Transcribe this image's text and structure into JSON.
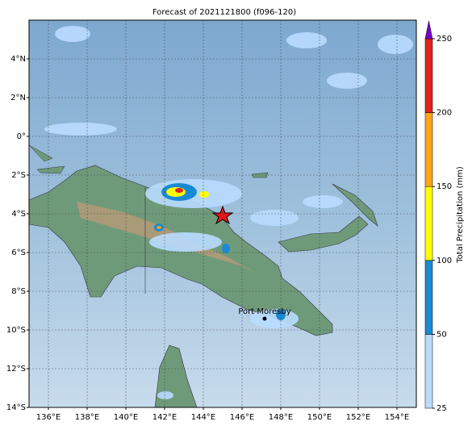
{
  "title": "Forecast of 2021121800 (f096-120)",
  "map": {
    "xlim": [
      135,
      155
    ],
    "ylim": [
      -14,
      6
    ],
    "xticks": [
      {
        "value": 136,
        "label": "136°E"
      },
      {
        "value": 138,
        "label": "138°E"
      },
      {
        "value": 140,
        "label": "140°E"
      },
      {
        "value": 142,
        "label": "142°E"
      },
      {
        "value": 144,
        "label": "144°E"
      },
      {
        "value": 146,
        "label": "146°E"
      },
      {
        "value": 148,
        "label": "148°E"
      },
      {
        "value": 150,
        "label": "150°E"
      },
      {
        "value": 152,
        "label": "152°E"
      },
      {
        "value": 154,
        "label": "154°E"
      }
    ],
    "yticks": [
      {
        "value": 4,
        "label": "4°N"
      },
      {
        "value": 2,
        "label": "2°N"
      },
      {
        "value": 0,
        "label": "0°"
      },
      {
        "value": -2,
        "label": "2°S"
      },
      {
        "value": -4,
        "label": "4°S"
      },
      {
        "value": -6,
        "label": "6°S"
      },
      {
        "value": -8,
        "label": "8°S"
      },
      {
        "value": -10,
        "label": "10°S"
      },
      {
        "value": -12,
        "label": "12°S"
      },
      {
        "value": -14,
        "label": "14°S"
      }
    ],
    "grid": true
  },
  "colorbar": {
    "label": "Total Precipitation (mm)",
    "levels": [
      25,
      50,
      100,
      150,
      200,
      250
    ],
    "colors": [
      "#b9dcff",
      "#1a8ad4",
      "#ffff00",
      "#ffa31a",
      "#e0231c"
    ],
    "extend_color": "#7a00c8"
  },
  "labels": {
    "city": "Port Moresby"
  }
}
